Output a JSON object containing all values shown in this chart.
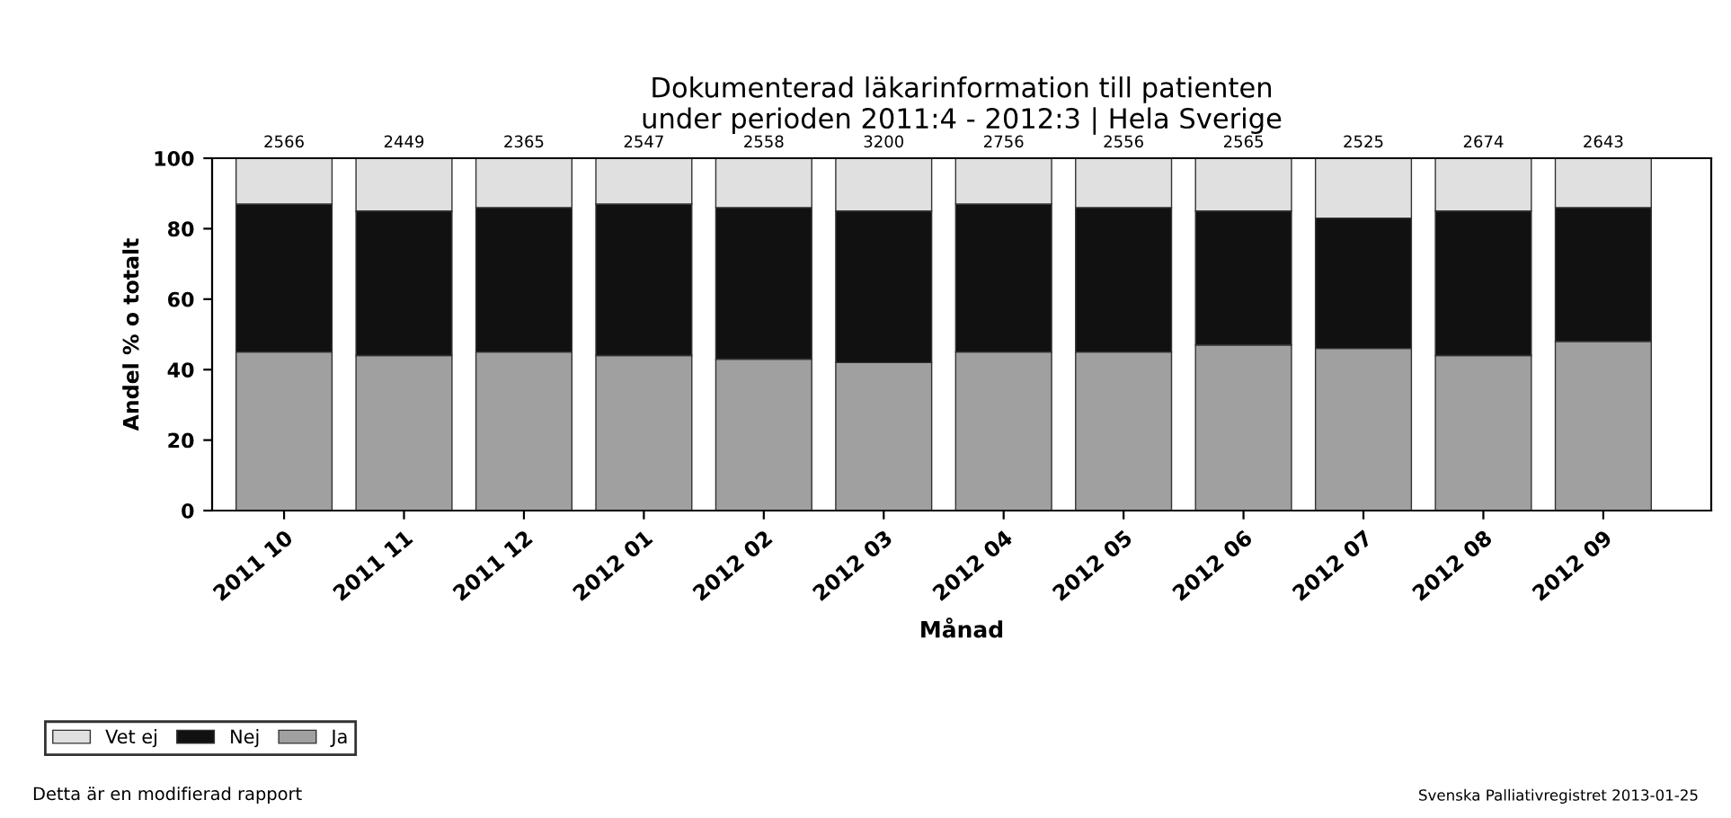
{
  "chart_data": {
    "type": "bar",
    "stacked": true,
    "title": "Dokumenterad läkarinformation till patienten\nunder perioden 2011:4 - 2012:3 | Hela Sverige",
    "xlabel": "Månad",
    "ylabel": "Andel % o totalt",
    "categories": [
      "2011 10",
      "2011 11",
      "2011 12",
      "2012 01",
      "2012 02",
      "2012 03",
      "2012 04",
      "2012 05",
      "2012 06",
      "2012 07",
      "2012 08",
      "2012 09"
    ],
    "series": [
      {
        "name": "Ja",
        "color": "#a0a0a0",
        "values": [
          45,
          44,
          45,
          44,
          43,
          42,
          45,
          45,
          47,
          46,
          44,
          48
        ]
      },
      {
        "name": "Nej",
        "color": "#111111",
        "values": [
          42,
          41,
          41,
          43,
          43,
          43,
          42,
          41,
          38,
          37,
          41,
          38
        ]
      },
      {
        "name": "Vet ej",
        "color": "#e0e0e0",
        "values": [
          13,
          15,
          14,
          13,
          14,
          15,
          13,
          14,
          15,
          17,
          15,
          14
        ]
      }
    ],
    "ylim": [
      0,
      100
    ],
    "yticks": [
      0,
      20,
      40,
      60,
      80,
      100
    ],
    "grid": false,
    "legend": "bottom left",
    "annotations": [
      "Detta är en modifierad rapport",
      "Svenska Palliativregistret 2013-01-25",
      {
        "text": "2566",
        "x": "2011 10",
        "y": 100
      },
      {
        "text": "2449",
        "x": "2011 11",
        "y": 100
      },
      {
        "text": "2365",
        "x": "2011 12",
        "y": 100
      },
      {
        "text": "2547",
        "x": "2012 01",
        "y": 100
      },
      {
        "text": "2558",
        "x": "2012 02",
        "y": 100
      },
      {
        "text": "3200",
        "x": "2012 03",
        "y": 100
      },
      {
        "text": "2756",
        "x": "2012 04",
        "y": 100
      },
      {
        "text": "2556",
        "x": "2012 05",
        "y": 100
      },
      {
        "text": "2565",
        "x": "2012 06",
        "y": 100
      },
      {
        "text": "2525",
        "x": "2012 07",
        "y": 100
      },
      {
        "text": "2674",
        "x": "2012 08",
        "y": 100
      },
      {
        "text": "2643",
        "x": "2012 09",
        "y": 100
      }
    ]
  }
}
